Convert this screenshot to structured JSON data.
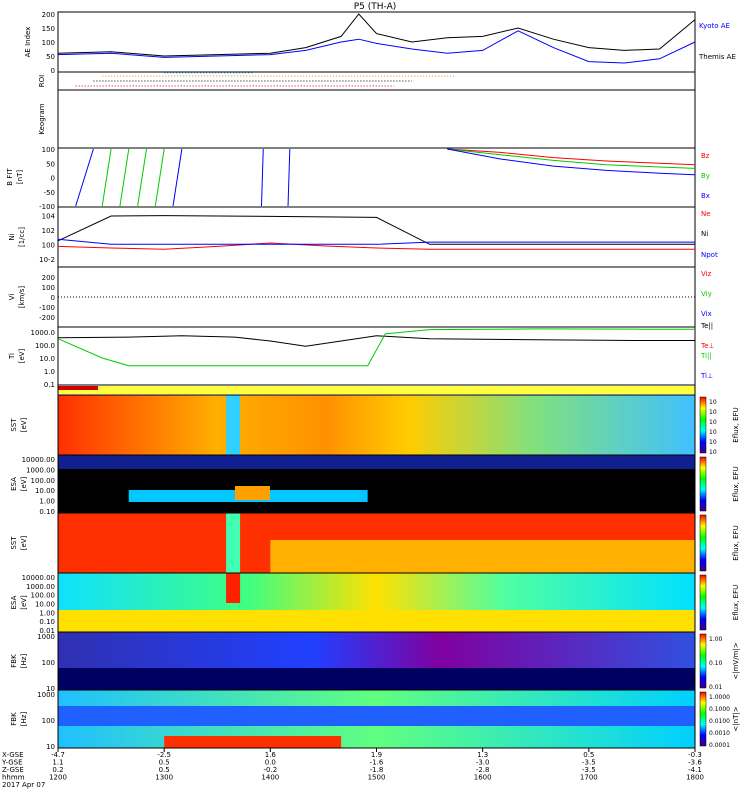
{
  "title": "P5 (TH-A)",
  "footer": {
    "rows": [
      "X-GSE",
      "Y-GSE",
      "Z-GSE",
      "hhmm",
      "2017 Apr 07"
    ],
    "columns": [
      [
        "-4.7",
        "1.1",
        "0.2",
        "1200"
      ],
      [
        "-2.5",
        "0.5",
        "0.5",
        "1300"
      ],
      [
        "1.6",
        "0.0",
        "-0.2",
        "1400"
      ],
      [
        "1.9",
        "-1.6",
        "-1.8",
        "1500"
      ],
      [
        "1.3",
        "-3.0",
        "-2.8",
        "1600"
      ],
      [
        "0.5",
        "-3.5",
        "-3.5",
        "1700"
      ],
      [
        "-0.3",
        "-3.6",
        "-4.1",
        "1800"
      ]
    ]
  },
  "colors": {
    "kyoto": "#0000ff",
    "themis": "#000000",
    "red": "#ff0000",
    "green": "#00cc00",
    "blue": "#0000ff",
    "black": "#000000"
  },
  "chart_data": {
    "type": "line",
    "x_hhmm": [
      "1200",
      "1300",
      "1400",
      "1500",
      "1600",
      "1700",
      "1800"
    ],
    "panels": [
      {
        "id": "ae",
        "ylabel": "AE Index",
        "ylim": [
          0,
          200
        ],
        "yticks": [
          "0",
          "50",
          "100",
          "150",
          "200"
        ],
        "legend": [
          "Kyoto AE",
          "Themis AE"
        ],
        "series": [
          {
            "name": "Kyoto AE",
            "x": [
              "12:00",
              "12:30",
              "13:00",
              "13:30",
              "14:00",
              "14:20",
              "14:40",
              "14:50",
              "15:00",
              "15:20",
              "15:40",
              "16:00",
              "16:20",
              "16:40",
              "17:00",
              "17:20",
              "17:40",
              "18:00"
            ],
            "y": [
              55,
              60,
              45,
              50,
              55,
              70,
              100,
              110,
              95,
              75,
              60,
              70,
              140,
              80,
              30,
              25,
              40,
              100
            ]
          },
          {
            "name": "Themis AE",
            "x": [
              "12:00",
              "12:30",
              "13:00",
              "13:30",
              "14:00",
              "14:20",
              "14:40",
              "14:50",
              "15:00",
              "15:20",
              "15:40",
              "16:00",
              "16:20",
              "16:40",
              "17:00",
              "17:20",
              "17:40",
              "18:00"
            ],
            "y": [
              60,
              65,
              50,
              55,
              60,
              80,
              120,
              200,
              130,
              100,
              115,
              120,
              150,
              110,
              80,
              70,
              75,
              180
            ]
          }
        ]
      },
      {
        "id": "roi",
        "ylabel": "ROI"
      },
      {
        "id": "keogram",
        "ylabel": "Keogram"
      },
      {
        "id": "bfit",
        "ylabel": "B FIT",
        "yunit": "[nT]",
        "ylim": [
          -100,
          100
        ],
        "yticks": [
          "-100",
          "-50",
          "0",
          "50",
          "100"
        ],
        "legend": [
          "Bz",
          "By",
          "Bx"
        ],
        "series": [
          {
            "name": "Bz",
            "x": [
              "15:40",
              "16:10",
              "16:40",
              "17:10",
              "17:40",
              "18:00"
            ],
            "y": [
              100,
              88,
              70,
              58,
              50,
              45
            ]
          },
          {
            "name": "By",
            "x": [
              "15:40",
              "16:10",
              "16:40",
              "17:10",
              "17:40",
              "18:00"
            ],
            "y": [
              100,
              80,
              60,
              45,
              37,
              32
            ]
          },
          {
            "name": "Bx",
            "x": [
              "15:40",
              "16:10",
              "16:40",
              "17:10",
              "17:40",
              "18:00"
            ],
            "y": [
              100,
              65,
              40,
              25,
              15,
              10
            ]
          }
        ]
      },
      {
        "id": "density",
        "ylabel": "Ni",
        "yunit": "[1/cc]",
        "ylim_log": [
          -3,
          5
        ],
        "yticks": [
          "10-2",
          "100",
          "102",
          "104"
        ],
        "legend": [
          "Ne",
          "Ni",
          "Npot"
        ],
        "series": [
          {
            "name": "Ne",
            "x": [
              "12:00",
              "12:30",
              "13:00",
              "13:30",
              "14:00",
              "14:30",
              "15:00",
              "15:30",
              "16:00",
              "17:00",
              "18:00"
            ],
            "y": [
              0.5,
              0.3,
              0.2,
              0.5,
              1.5,
              0.6,
              0.3,
              0.2,
              0.2,
              0.2,
              0.2
            ]
          },
          {
            "name": "Ni",
            "x": [
              "12:00",
              "12:30",
              "13:00",
              "13:30",
              "14:00",
              "14:30",
              "15:00",
              "15:30",
              "16:00",
              "17:00",
              "18:00"
            ],
            "y": [
              3,
              8000,
              9000,
              8000,
              7000,
              6000,
              5000,
              1,
              1,
              1,
              1
            ]
          },
          {
            "name": "Npot",
            "x": [
              "12:00",
              "12:30",
              "13:00",
              "13:30",
              "14:00",
              "14:30",
              "15:00",
              "15:30",
              "16:00",
              "17:00",
              "18:00"
            ],
            "y": [
              5,
              1,
              1,
              1,
              1,
              1,
              1,
              2,
              2,
              2,
              2
            ]
          }
        ]
      },
      {
        "id": "velocity",
        "ylabel": "Vi",
        "yunit": "[km/s]",
        "ylim": [
          -300,
          300
        ],
        "yticks": [
          "-200",
          "-100",
          "0",
          "100",
          "200"
        ],
        "legend": [
          "Viz",
          "Viy",
          "Vix"
        ]
      },
      {
        "id": "temperature",
        "ylabel": "Ti",
        "yunit": "[eV]",
        "ylim_log": [
          -1,
          3.3
        ],
        "yticks": [
          "0.1",
          "1.0",
          "10.0",
          "100.0",
          "1000.0"
        ],
        "legend": [
          "Te||",
          "Te⊥",
          "Ti||",
          "Ti⊥"
        ],
        "series": [
          {
            "name": "Te||",
            "x": [
              "12:00",
              "12:40",
              "13:10",
              "13:40",
              "14:00",
              "14:20",
              "14:40",
              "15:00",
              "15:30",
              "16:30",
              "17:30",
              "18:00"
            ],
            "y": [
              350,
              400,
              500,
              400,
              200,
              80,
              200,
              500,
              300,
              250,
              220,
              220
            ]
          },
          {
            "name": "Ti||",
            "x": [
              "12:00",
              "12:25",
              "12:40",
              "13:10",
              "13:40",
              "14:00",
              "14:30",
              "14:55",
              "15:05",
              "15:30",
              "16:30",
              "17:30",
              "18:00"
            ],
            "y": [
              300,
              10,
              2.5,
              2.5,
              2.5,
              2.5,
              2.5,
              2.5,
              700,
              1500,
              1700,
              1600,
              1600
            ]
          }
        ]
      },
      {
        "id": "sst1",
        "ylabel": "SST",
        "yunit": "[eV]",
        "cbar": [
          "10",
          "10",
          "10",
          "10",
          "10",
          "10"
        ],
        "cbar_label": "Eflux, EFU"
      },
      {
        "id": "esa1",
        "ylabel": "ESA",
        "yunit": "[eV]",
        "yticks": [
          "10000.00",
          "1000.00",
          "100.00",
          "10.00",
          "1.00",
          "0.10"
        ],
        "cbar_label": "Eflux, EFU"
      },
      {
        "id": "sst2",
        "ylabel": "SST",
        "yunit": "[eV]",
        "cbar_label": "Eflux, EFU"
      },
      {
        "id": "esa2",
        "ylabel": "ESA",
        "yunit": "[eV]",
        "yticks": [
          "10000.00",
          "1000.00",
          "100.00",
          "10.00",
          "1.00",
          "0.10",
          "0.01"
        ],
        "cbar_label": "Eflux, EFU"
      },
      {
        "id": "fbk1",
        "ylabel": "FBK",
        "yunit": "[Hz]",
        "yticks": [
          "1000",
          "100",
          "10"
        ],
        "cbar": [
          "1.00",
          "0.10",
          "0.01"
        ],
        "cbar_label": "<|mV/m|>"
      },
      {
        "id": "fbk2",
        "ylabel": "FBK",
        "yunit": "[Hz]",
        "yticks": [
          "1000",
          "100",
          "10"
        ],
        "cbar": [
          "1.0000",
          "0.1000",
          "0.0100",
          "0.0010",
          "0.0001"
        ],
        "cbar_label": "<|nT|>"
      }
    ]
  }
}
